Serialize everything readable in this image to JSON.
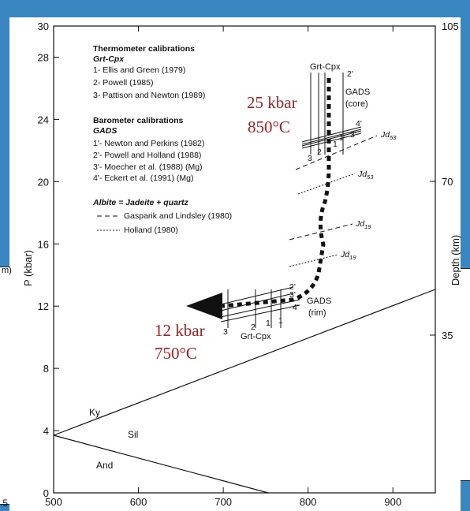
{
  "colors": {
    "background": "#3a86c0",
    "panel": "#ffffff",
    "ink": "#111111",
    "highlight": "#b01c1c"
  },
  "edge_fragments": {
    "left_top": "m)",
    "left_bottom": ".5"
  },
  "axes": {
    "ylabel": "P (kbar)",
    "ylabel_right": "Depth (km)",
    "x_ticks": [
      "500",
      "600",
      "700",
      "800",
      "900"
    ],
    "y_ticks": [
      "0",
      "4",
      "8",
      "12",
      "16",
      "20",
      "24",
      "28",
      "30"
    ],
    "depth_ticks": [
      "35",
      "70",
      "105"
    ]
  },
  "legend": {
    "thermo_title": "Thermometer calibrations",
    "thermo_sub": "Grt-Cpx",
    "thermo_items": [
      "1- Ellis and Green (1979)",
      "2- Powell (1985)",
      "3- Pattison and Newton (1989)"
    ],
    "baro_title": "Barometer calibrations",
    "baro_sub": "GADS",
    "baro_items": [
      "1'- Newton and Perkins (1982)",
      "2'- Powell and Holland (1988)",
      "3'- Moecher et al. (1988) (Mg)",
      "4'- Eckert et al. (1991) (Mg)"
    ],
    "albite_title": "Albite = Jadeite + quartz",
    "albite_items": [
      "Gasparik and Lindsley (1980)",
      "Holland (1980)"
    ]
  },
  "phases": {
    "ky": "Ky",
    "sil": "Sil",
    "and": "And"
  },
  "labels": {
    "grt_cpx_top": "Grt-Cpx",
    "gads_core_1": "GADS",
    "gads_core_2": "(core)",
    "grt_cpx_bottom": "Grt-Cpx",
    "gads_rim_1": "GADS",
    "gads_rim_2": "(rim)",
    "jd_main": "Jd",
    "jd53": "53",
    "jd19": "19",
    "num_1": "1",
    "num_2": "2",
    "num_3": "3",
    "num_1p": "1'",
    "num_2p": "2'",
    "num_3p": "3'",
    "num_4p": "4'"
  },
  "annotations": {
    "peak_p": "25 kbar",
    "peak_t": "850°C",
    "retro_p": "12 kbar",
    "retro_t": "750°C"
  }
}
